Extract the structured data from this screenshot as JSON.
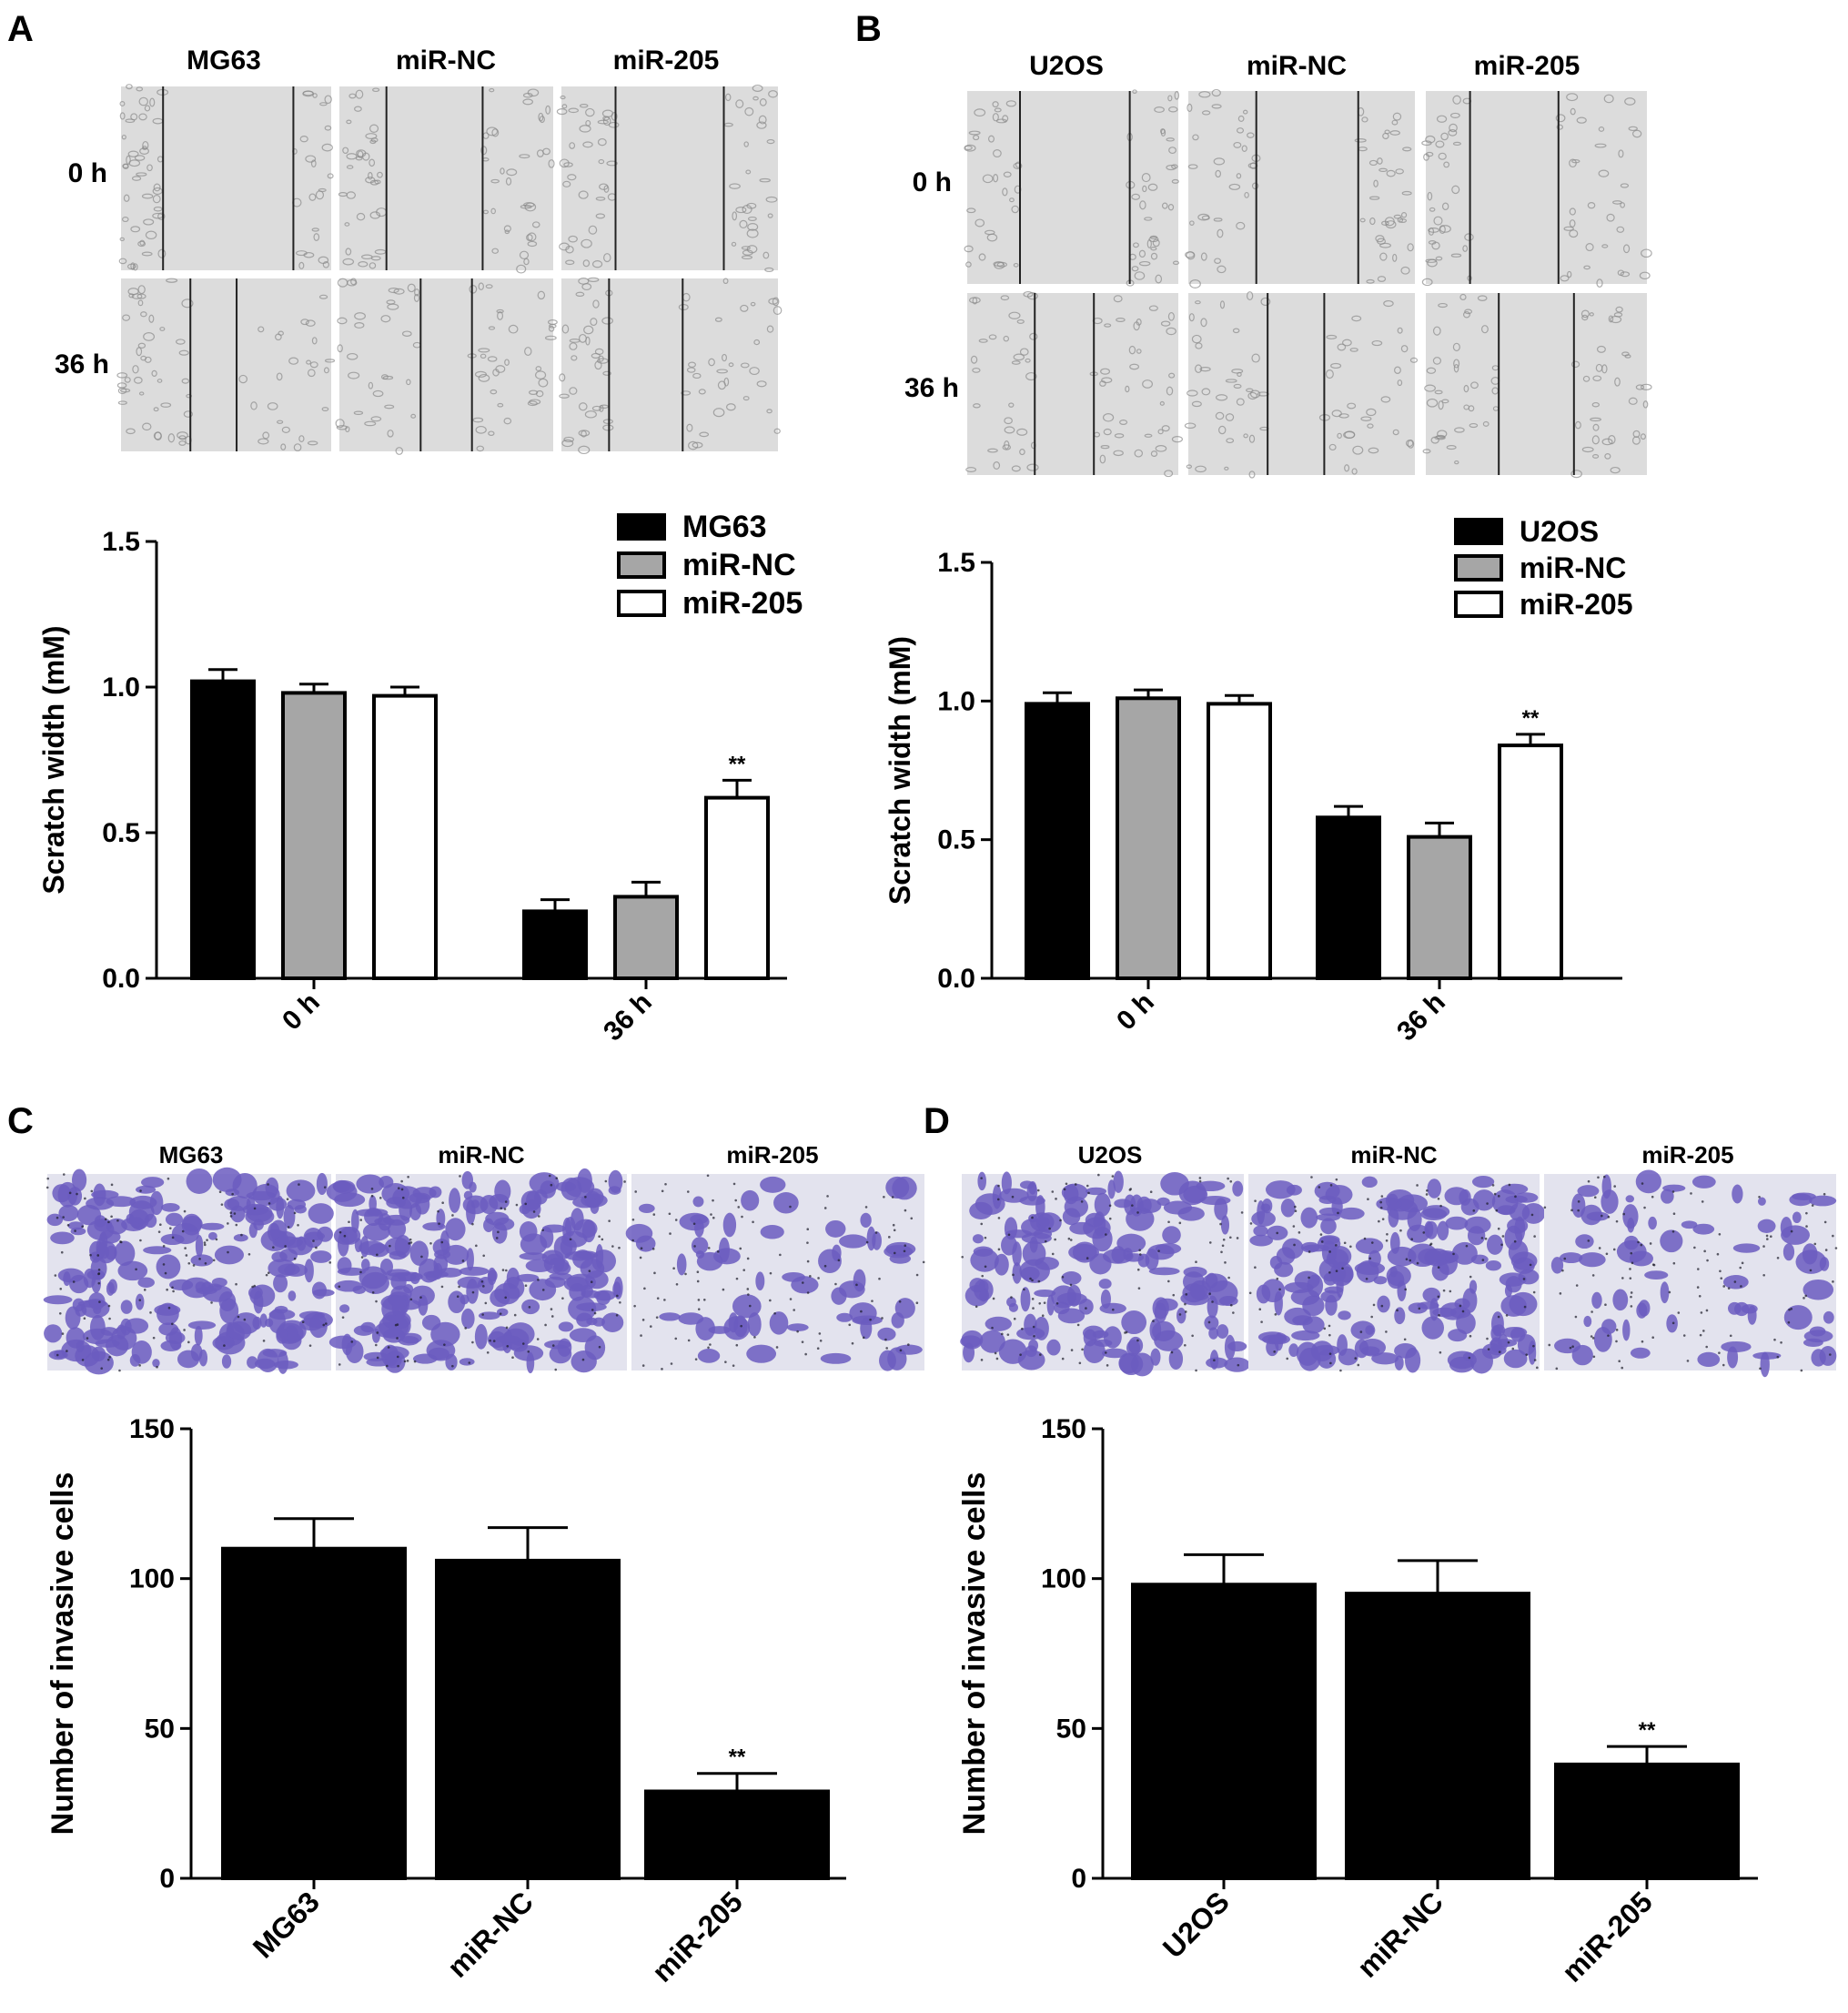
{
  "colors": {
    "black": "#000000",
    "gray": "#a6a6a6",
    "white": "#ffffff",
    "micro_bg": "#dcdcdc",
    "micro_line": "#222222",
    "micro_cells": "#8a8a8a",
    "stain_bg": "#e3e3ee",
    "stain_cells": "#6b5cbf",
    "stain_dots": "#1d1d2a"
  },
  "panels": {
    "A": {
      "letter": "A",
      "image_columns": [
        "MG63",
        "miR-NC",
        "miR-205"
      ],
      "image_rows": [
        "0 h",
        "36 h"
      ]
    },
    "B": {
      "letter": "B",
      "image_columns": [
        "U2OS",
        "miR-NC",
        "miR-205"
      ],
      "image_rows": [
        "0 h",
        "36 h"
      ]
    },
    "C": {
      "letter": "C",
      "image_columns": [
        "MG63",
        "miR-NC",
        "miR-205"
      ]
    },
    "D": {
      "letter": "D",
      "image_columns": [
        "U2OS",
        "miR-NC",
        "miR-205"
      ]
    }
  },
  "chart_data": [
    {
      "panel": "A",
      "type": "bar",
      "ylabel": "Scratch width (mM)",
      "categories": [
        "0 h",
        "36 h"
      ],
      "ylim": [
        0,
        1.5
      ],
      "yticks": [
        "0.0",
        "0.5",
        "1.0",
        "1.5"
      ],
      "legend_position": "top-right",
      "series": [
        {
          "name": "MG63",
          "color": "#000000",
          "values": [
            1.02,
            0.23
          ],
          "errors": [
            0.04,
            0.04
          ]
        },
        {
          "name": "miR-NC",
          "color": "#a6a6a6",
          "values": [
            0.98,
            0.28
          ],
          "errors": [
            0.03,
            0.05
          ]
        },
        {
          "name": "miR-205",
          "color": "#ffffff",
          "values": [
            0.97,
            0.62
          ],
          "errors": [
            0.03,
            0.06
          ]
        }
      ],
      "annotations": [
        {
          "category": 1,
          "series": 2,
          "text": "**"
        }
      ]
    },
    {
      "panel": "B",
      "type": "bar",
      "ylabel": "Scratch width (mM)",
      "categories": [
        "0 h",
        "36 h"
      ],
      "ylim": [
        0,
        1.5
      ],
      "yticks": [
        "0.0",
        "0.5",
        "1.0",
        "1.5"
      ],
      "legend_position": "top-right",
      "series": [
        {
          "name": "U2OS",
          "color": "#000000",
          "values": [
            0.99,
            0.58
          ],
          "errors": [
            0.04,
            0.04
          ]
        },
        {
          "name": "miR-NC",
          "color": "#a6a6a6",
          "values": [
            1.01,
            0.51
          ],
          "errors": [
            0.03,
            0.05
          ]
        },
        {
          "name": "miR-205",
          "color": "#ffffff",
          "values": [
            0.99,
            0.84
          ],
          "errors": [
            0.03,
            0.04
          ]
        }
      ],
      "annotations": [
        {
          "category": 1,
          "series": 2,
          "text": "**"
        }
      ]
    },
    {
      "panel": "C",
      "type": "bar",
      "ylabel": "Number of invasive cells",
      "categories": [
        "MG63",
        "miR-NC",
        "miR-205"
      ],
      "ylim": [
        0,
        150
      ],
      "yticks": [
        "0",
        "50",
        "100",
        "150"
      ],
      "values": [
        110,
        106,
        29
      ],
      "errors": [
        10,
        11,
        6
      ],
      "color": "#000000",
      "annotations": [
        {
          "category": 2,
          "text": "**"
        }
      ]
    },
    {
      "panel": "D",
      "type": "bar",
      "ylabel": "Number of invasive cells",
      "categories": [
        "U2OS",
        "miR-NC",
        "miR-205"
      ],
      "ylim": [
        0,
        150
      ],
      "yticks": [
        "0",
        "50",
        "100",
        "150"
      ],
      "values": [
        98,
        95,
        38
      ],
      "errors": [
        10,
        11,
        6
      ],
      "color": "#000000",
      "annotations": [
        {
          "category": 2,
          "text": "**"
        }
      ]
    }
  ]
}
